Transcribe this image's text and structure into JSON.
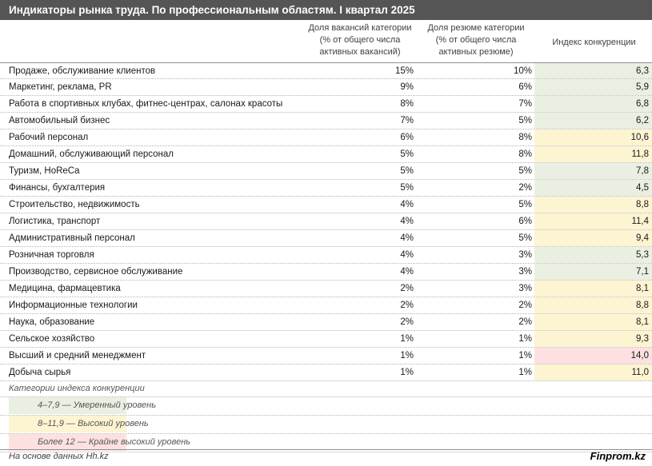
{
  "title": "Индикаторы рынка труда. По профессиональным областям. I квартал 2025",
  "headers": {
    "vacancies_line1": "Доля вакансий категории",
    "vacancies_line2": "(% от общего числа",
    "vacancies_line3": "активных вакансий)",
    "resumes_line1": "Доля резюме категории",
    "resumes_line2": "(% от общего числа",
    "resumes_line3": "активных резюме)",
    "index": "Индекс конкуренции"
  },
  "colors": {
    "moderate": "#eaf0e1",
    "high": "#fdf4d2",
    "extreme": "#fde1e1"
  },
  "chart_data": {
    "type": "table",
    "columns": [
      "Доля вакансий категории (% от общего числа активных вакансий)",
      "Доля резюме категории (% от общего числа активных резюме)",
      "Индекс конкуренции"
    ],
    "rows": [
      {
        "name": "Продаже, обслуживание клиентов",
        "vacancies": "15%",
        "resumes": "10%",
        "index": "6,3",
        "level": "moderate"
      },
      {
        "name": "Маркетинг, реклама, PR",
        "vacancies": "9%",
        "resumes": "6%",
        "index": "5,9",
        "level": "moderate"
      },
      {
        "name": "Работа в спортивных клубах, фитнес-центрах, салонах красоты",
        "vacancies": "8%",
        "resumes": "7%",
        "index": "6,8",
        "level": "moderate"
      },
      {
        "name": "Автомобильный бизнес",
        "vacancies": "7%",
        "resumes": "5%",
        "index": "6,2",
        "level": "moderate"
      },
      {
        "name": "Рабочий персонал",
        "vacancies": "6%",
        "resumes": "8%",
        "index": "10,6",
        "level": "high"
      },
      {
        "name": "Домашний, обслуживающий персонал",
        "vacancies": "5%",
        "resumes": "8%",
        "index": "11,8",
        "level": "high"
      },
      {
        "name": "Туризм, HoReCa",
        "vacancies": "5%",
        "resumes": "5%",
        "index": "7,8",
        "level": "moderate"
      },
      {
        "name": "Финансы, бухгалтерия",
        "vacancies": "5%",
        "resumes": "2%",
        "index": "4,5",
        "level": "moderate"
      },
      {
        "name": "Строительство, недвижимость",
        "vacancies": "4%",
        "resumes": "5%",
        "index": "8,8",
        "level": "high"
      },
      {
        "name": "Логистика, транспорт",
        "vacancies": "4%",
        "resumes": "6%",
        "index": "11,4",
        "level": "high"
      },
      {
        "name": "Административный персонал",
        "vacancies": "4%",
        "resumes": "5%",
        "index": "9,4",
        "level": "high"
      },
      {
        "name": "Розничная торговля",
        "vacancies": "4%",
        "resumes": "3%",
        "index": "5,3",
        "level": "moderate"
      },
      {
        "name": "Производство, сервисное обслуживание",
        "vacancies": "4%",
        "resumes": "3%",
        "index": "7,1",
        "level": "moderate"
      },
      {
        "name": "Медицина, фармацевтика",
        "vacancies": "2%",
        "resumes": "3%",
        "index": "8,1",
        "level": "high"
      },
      {
        "name": "Информационные технологии",
        "vacancies": "2%",
        "resumes": "2%",
        "index": "8,8",
        "level": "high"
      },
      {
        "name": "Наука, образование",
        "vacancies": "2%",
        "resumes": "2%",
        "index": "8,1",
        "level": "high"
      },
      {
        "name": "Сельское хозяйство",
        "vacancies": "1%",
        "resumes": "1%",
        "index": "9,3",
        "level": "high"
      },
      {
        "name": "Высший и средний менеджмент",
        "vacancies": "1%",
        "resumes": "1%",
        "index": "14,0",
        "level": "extreme"
      },
      {
        "name": "Добыча сырья",
        "vacancies": "1%",
        "resumes": "1%",
        "index": "11,0",
        "level": "high"
      }
    ]
  },
  "legend": {
    "title": "Категории индекса конкуренции",
    "items": [
      {
        "label": "4–7,9 — Умеренный уровень",
        "level": "moderate"
      },
      {
        "label": "8–11,9 — Высокий уровень",
        "level": "high"
      },
      {
        "label": "Более 12 — Крайне высокий уровень",
        "level": "extreme"
      }
    ]
  },
  "footer": {
    "source": "На основе данных Hh.kz",
    "brand": "Finprom.kz"
  }
}
